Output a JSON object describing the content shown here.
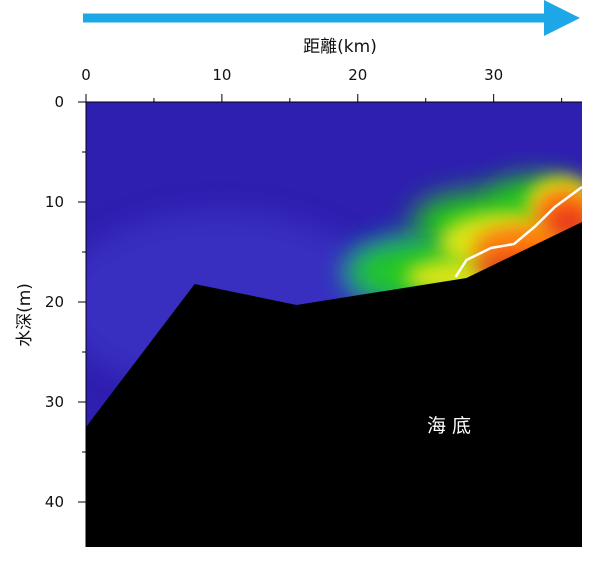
{
  "chart_data": {
    "type": "heatmap",
    "xlabel": "距離(km)",
    "ylabel": "水深(m)",
    "x_ticks": [
      0,
      10,
      20,
      30
    ],
    "y_ticks": [
      0,
      10,
      20,
      30,
      40
    ],
    "xlim": [
      0,
      36.5
    ],
    "ylim": [
      0,
      44.5
    ],
    "x_axis_position": "top",
    "direction_arrow": "left-to-right",
    "annotation": "海底",
    "colors": {
      "arrow": "#1ea7e6",
      "seabed": "#000000",
      "contour": "#ffffff",
      "background_field": "#2e1fb0"
    },
    "seabed_profile": [
      [
        0,
        32.5
      ],
      [
        8,
        18.2
      ],
      [
        15.5,
        20.3
      ],
      [
        28,
        17.6
      ],
      [
        36.5,
        12.0
      ]
    ],
    "contour_line": [
      [
        27.2,
        17.5
      ],
      [
        28.0,
        15.8
      ],
      [
        29.8,
        14.6
      ],
      [
        31.5,
        14.2
      ],
      [
        33.0,
        12.5
      ],
      [
        34.5,
        10.5
      ],
      [
        36.0,
        9.0
      ],
      [
        36.5,
        8.5
      ]
    ],
    "field_features": [
      {
        "level": "green",
        "x": 29,
        "y": 12,
        "rx": 5.0,
        "ry": 3.0
      },
      {
        "level": "green",
        "x": 26,
        "y": 17,
        "rx": 6.5,
        "ry": 3.0
      },
      {
        "level": "green",
        "x": 33,
        "y": 10,
        "rx": 3.5,
        "ry": 2.5
      },
      {
        "level": "yellow",
        "x": 31,
        "y": 14,
        "rx": 5.0,
        "ry": 3.0
      },
      {
        "level": "yellow",
        "x": 27.5,
        "y": 17.5,
        "rx": 4.0,
        "ry": 1.8
      },
      {
        "level": "yellow",
        "x": 35,
        "y": 10,
        "rx": 2.5,
        "ry": 2.5
      },
      {
        "level": "orange",
        "x": 32.5,
        "y": 14.5,
        "rx": 4.0,
        "ry": 2.2
      },
      {
        "level": "orange",
        "x": 35.2,
        "y": 11,
        "rx": 2.2,
        "ry": 2.4
      },
      {
        "level": "red",
        "x": 31.5,
        "y": 16.5,
        "rx": 3.0,
        "ry": 1.2
      },
      {
        "level": "red",
        "x": 35.5,
        "y": 12,
        "rx": 1.5,
        "ry": 1.5
      }
    ],
    "level_colors": {
      "green": "#22c81e",
      "yellow": "#d9e414",
      "orange": "#ff7a10",
      "red": "#e8381a"
    }
  }
}
